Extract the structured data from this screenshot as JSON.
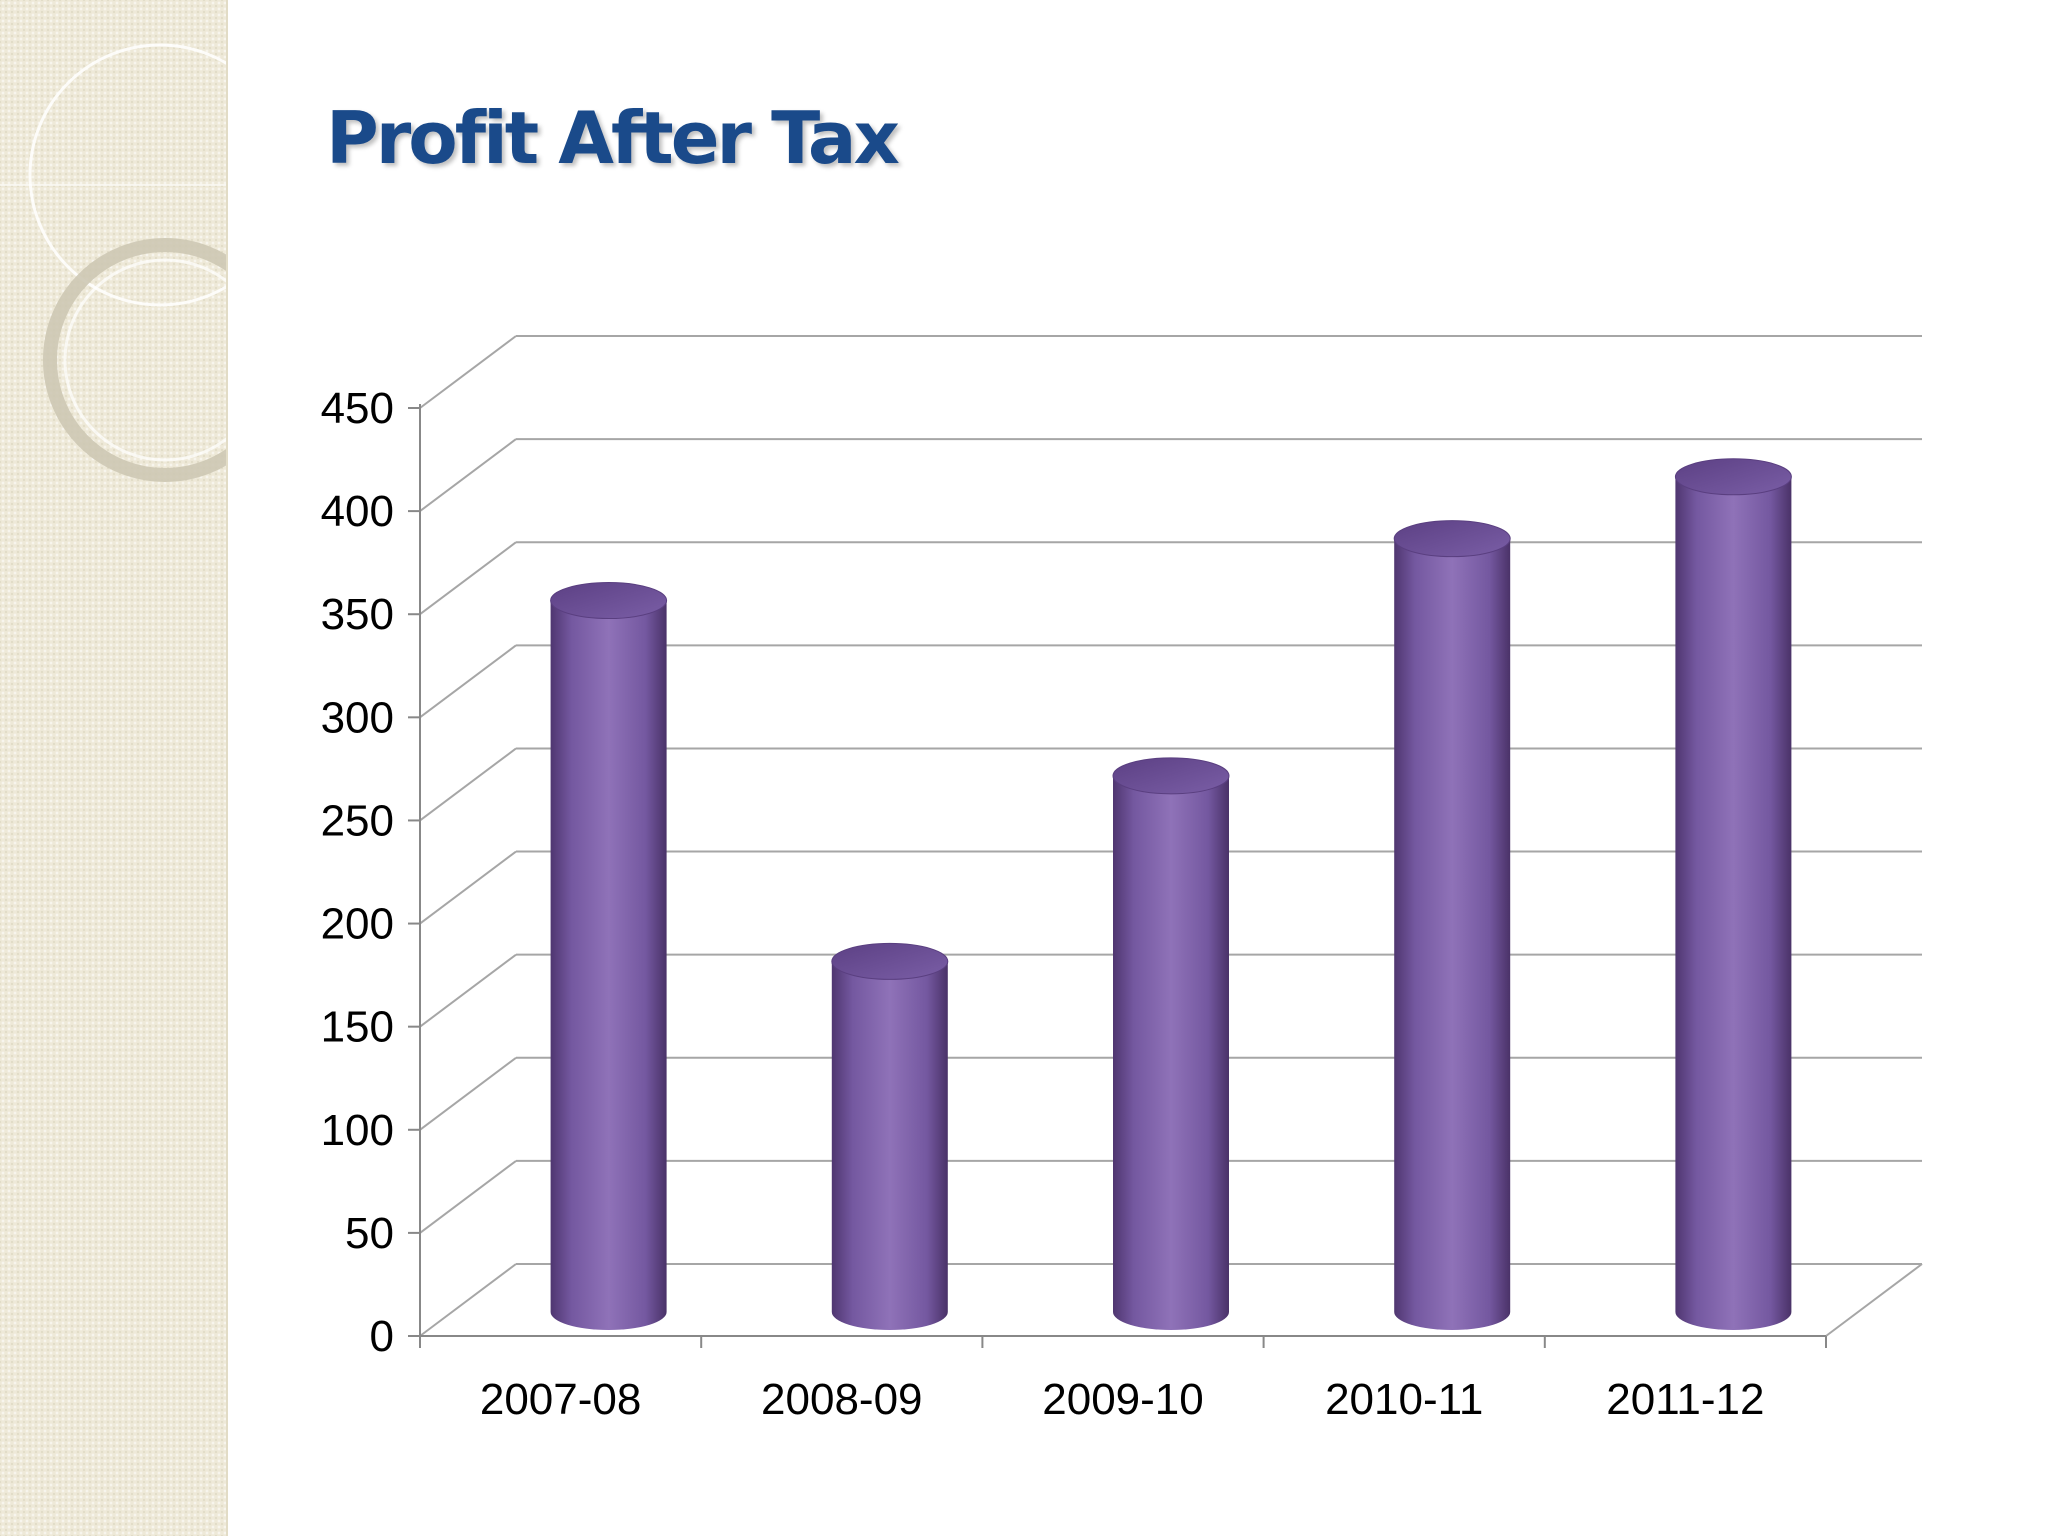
{
  "slide": {
    "title": "Profit After Tax"
  },
  "colors": {
    "title": "#1a4a8a",
    "bar": "#8a6cb0",
    "bar_top": "#6a4d92",
    "grid": "#a6a6a6",
    "panel": "#eee9d8"
  },
  "chart_data": {
    "type": "bar",
    "style": "3d-cylinder",
    "title": "",
    "xlabel": "",
    "ylabel": "",
    "categories": [
      "2007-08",
      "2008-09",
      "2009-10",
      "2010-11",
      "2011-12"
    ],
    "values": [
      345,
      170,
      260,
      375,
      405
    ],
    "ylim": [
      0,
      450
    ],
    "yticks": [
      0,
      50,
      100,
      150,
      200,
      250,
      300,
      350,
      400,
      450
    ],
    "grid": true,
    "legend": "none"
  }
}
